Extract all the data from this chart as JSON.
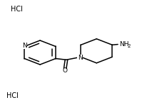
{
  "bg_color": "#ffffff",
  "line_color": "#000000",
  "text_color": "#000000",
  "hcl1_text": "HCl",
  "hcl2_text": "HCl",
  "n_text": "N",
  "o_text": "O",
  "figsize": [
    2.2,
    1.48
  ],
  "dpi": 100,
  "lw": 1.1
}
